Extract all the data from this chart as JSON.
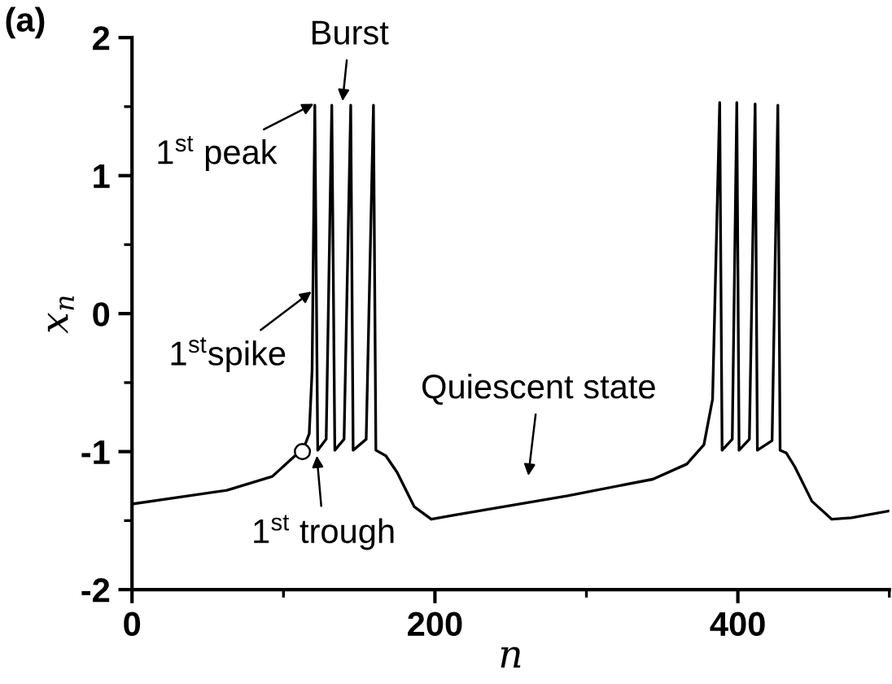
{
  "chart_data": {
    "type": "line",
    "title": "(a)",
    "xlabel": "n",
    "ylabel": "x$_{n}$",
    "xlim": [
      0,
      500
    ],
    "ylim": [
      -2,
      2
    ],
    "xticks": [
      0,
      {
        "value": 100,
        "label": null
      },
      200,
      {
        "value": 300,
        "label": null
      },
      400,
      {
        "value": 500,
        "label": null
      }
    ],
    "yticks": [
      -2,
      {
        "value": -1.5,
        "label": null
      },
      -1,
      {
        "value": -0.5,
        "label": null
      },
      0,
      {
        "value": 0.5,
        "label": null
      },
      1,
      {
        "value": 1.5,
        "label": null
      },
      2
    ],
    "grid": false,
    "legend": false,
    "series": [
      {
        "color": "#000000",
        "marker": "none",
        "line_style": "solid",
        "x": [
          0,
          62.6,
          92.6,
          107.6,
          112.5,
          117,
          118.9,
          120.7,
          122.6,
          128.2,
          131.9,
          133.9,
          140,
          144.4,
          146,
          154.6,
          159.4,
          161,
          167.6,
          175,
          186.4,
          197.6,
          212.6,
          287.6,
          343.9,
          366.3,
          377.6,
          383.3,
          388,
          389.6,
          396.3,
          399.3,
          400.8,
          407.6,
          411.4,
          412.9,
          422.6,
          426.4,
          427.9,
          432,
          437.6,
          448.9,
          462,
          475,
          500
        ],
        "values": [
          -1.38,
          -1.28,
          -1.18,
          -1.03,
          -1.0,
          -0.87,
          -0.41,
          1.51,
          -0.99,
          -0.91,
          1.51,
          -0.99,
          -0.91,
          1.51,
          -0.99,
          -0.91,
          1.51,
          -0.99,
          -1.03,
          -1.15,
          -1.4,
          -1.49,
          -1.46,
          -1.32,
          -1.2,
          -1.09,
          -0.95,
          -0.62,
          1.53,
          -0.99,
          -0.91,
          1.53,
          -0.99,
          -0.91,
          1.52,
          -0.99,
          -0.92,
          1.51,
          -0.99,
          -1.01,
          -1.11,
          -1.36,
          -1.49,
          -1.48,
          -1.43
        ]
      },
      {
        "type": "scatter",
        "color": "#ffffff",
        "marker": "circle",
        "x": [
          112.5
        ],
        "values": [
          -1.0
        ]
      }
    ],
    "annotations": [
      {
        "text": "Burst",
        "x": 139,
        "y": 1.54
      },
      {
        "text": "1$^{st}$ peak",
        "x": 120,
        "y": 1.52
      },
      {
        "text": "1$^{st}$spike",
        "x": 118.5,
        "y": 0.16
      },
      {
        "text": "1$^{st}$ trough",
        "x": 122,
        "y": -1.03
      },
      {
        "text": "Quiescent state",
        "x": 259.5,
        "y": -1.37
      }
    ]
  }
}
